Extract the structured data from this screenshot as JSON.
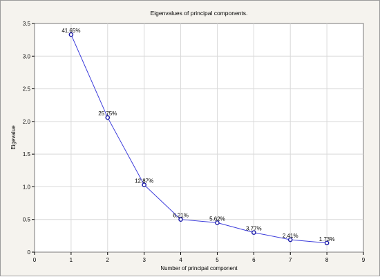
{
  "chart_data": {
    "type": "line",
    "title": "Eigenvalues of principal components.",
    "xlabel": "Number of principal component",
    "ylabel": "Eigevalue",
    "xlim": [
      0,
      9
    ],
    "ylim": [
      0,
      3.5
    ],
    "xticks": [
      0,
      1,
      2,
      3,
      4,
      5,
      6,
      7,
      8,
      9
    ],
    "yticks": [
      0,
      0.5,
      1.0,
      1.5,
      2.0,
      2.5,
      3.0,
      3.5
    ],
    "ytick_labels": [
      "0",
      "0.5",
      "1.0",
      "1.5",
      "2.0",
      "2.5",
      "3.0",
      "3.5"
    ],
    "grid": true,
    "series": [
      {
        "x": [
          1,
          2,
          3,
          4,
          5,
          6,
          7,
          8
        ],
        "values": [
          3.33,
          2.06,
          1.03,
          0.5,
          0.45,
          0.3,
          0.19,
          0.14
        ],
        "labels": [
          "41.65%",
          "25.75%",
          "12.87%",
          "6.21%",
          "5.62%",
          "3.77%",
          "2.41%",
          "1.73%"
        ],
        "color": "#3b3bdb"
      }
    ]
  }
}
